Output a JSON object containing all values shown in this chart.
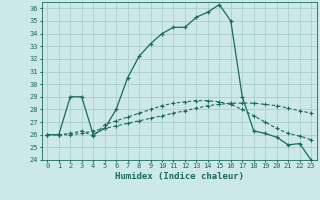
{
  "xlabel": "Humidex (Indice chaleur)",
  "bg_color": "#cce8e8",
  "line_color": "#1a6b5a",
  "grid_color": "#aad0d0",
  "xlim": [
    -0.5,
    23.5
  ],
  "ylim": [
    24,
    36.5
  ],
  "yticks": [
    24,
    25,
    26,
    27,
    28,
    29,
    30,
    31,
    32,
    33,
    34,
    35,
    36
  ],
  "xticks": [
    0,
    1,
    2,
    3,
    4,
    5,
    6,
    7,
    8,
    9,
    10,
    11,
    12,
    13,
    14,
    15,
    16,
    17,
    18,
    19,
    20,
    21,
    22,
    23
  ],
  "line1_x": [
    0,
    1,
    2,
    3,
    4,
    5,
    6,
    7,
    8,
    9,
    10,
    11,
    12,
    13,
    14,
    15,
    16,
    17,
    18,
    19,
    20,
    21,
    22,
    23
  ],
  "line1_y": [
    26.0,
    26.0,
    26.0,
    26.1,
    26.3,
    26.5,
    26.7,
    26.9,
    27.1,
    27.3,
    27.5,
    27.7,
    27.9,
    28.1,
    28.3,
    28.4,
    28.5,
    28.5,
    28.5,
    28.4,
    28.3,
    28.1,
    27.9,
    27.7
  ],
  "line2_x": [
    0,
    1,
    2,
    3,
    4,
    5,
    6,
    7,
    8,
    9,
    10,
    11,
    12,
    13,
    14,
    15,
    16,
    17,
    18,
    19,
    20,
    21,
    22,
    23
  ],
  "line2_y": [
    26.0,
    26.0,
    26.1,
    26.3,
    25.9,
    26.8,
    27.1,
    27.4,
    27.7,
    28.0,
    28.3,
    28.5,
    28.6,
    28.7,
    28.7,
    28.6,
    28.4,
    28.0,
    27.5,
    27.0,
    26.5,
    26.1,
    25.9,
    25.6
  ],
  "line3_x": [
    0,
    1,
    2,
    3,
    4,
    5,
    6,
    7,
    8,
    9,
    10,
    11,
    12,
    13,
    14,
    15,
    16,
    17,
    18,
    19,
    20,
    21,
    22,
    23
  ],
  "line3_y": [
    26.0,
    26.0,
    29.0,
    29.0,
    26.0,
    26.5,
    28.0,
    30.5,
    32.2,
    33.2,
    34.0,
    34.5,
    34.5,
    35.3,
    35.7,
    36.3,
    35.0,
    29.0,
    26.3,
    26.1,
    25.8,
    25.2,
    25.3,
    24.0
  ]
}
